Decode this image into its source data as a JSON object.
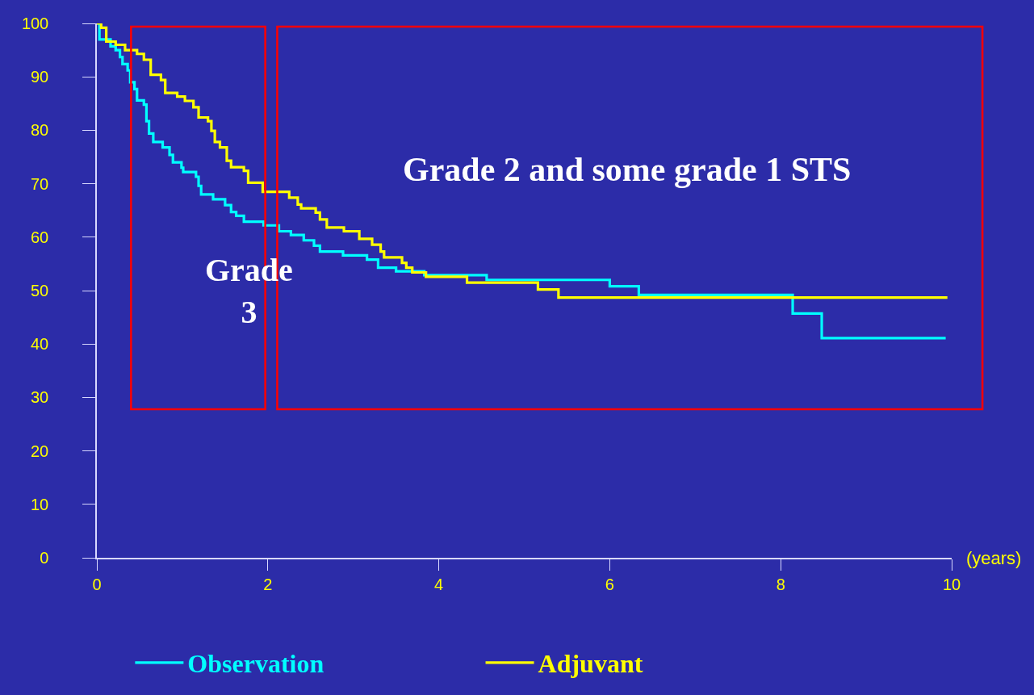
{
  "chart_data": {
    "type": "step",
    "xlabel": "(years)",
    "xlim": [
      0,
      10
    ],
    "xticks": [
      0,
      2,
      4,
      6,
      8,
      10
    ],
    "ylim": [
      0,
      100
    ],
    "yticks": [
      0,
      10,
      20,
      30,
      40,
      50,
      60,
      70,
      80,
      90,
      100
    ],
    "grid": false,
    "legend": "bottom",
    "line_style": "solid",
    "marker": "none",
    "annotations": [
      "Grade 3",
      "Grade 2 and some grade 1 STS"
    ],
    "series": [
      {
        "name": "Observation",
        "color": "#00ffff",
        "x": [
          0,
          0.03,
          0.16,
          0.22,
          0.27,
          0.3,
          0.36,
          0.39,
          0.44,
          0.47,
          0.55,
          0.58,
          0.61,
          0.66,
          0.77,
          0.85,
          0.89,
          0.99,
          1.01,
          1.16,
          1.19,
          1.22,
          1.36,
          1.5,
          1.57,
          1.63,
          1.72,
          1.95,
          2.13,
          2.27,
          2.42,
          2.54,
          2.61,
          2.88,
          3.16,
          3.29,
          3.5,
          3.83,
          4.56,
          6.0,
          6.34,
          8.14,
          8.48,
          9.93
        ],
        "values": [
          100,
          97,
          95.7,
          95,
          93.7,
          92.4,
          91.2,
          89,
          87.7,
          85.6,
          84.8,
          81.7,
          79.4,
          77.8,
          76.8,
          75.4,
          74,
          73,
          72.2,
          71.3,
          69.6,
          68,
          67.1,
          66,
          64.7,
          64,
          62.9,
          62.2,
          61.1,
          60.4,
          59.4,
          58.4,
          57.3,
          56.6,
          55.8,
          54.3,
          53.6,
          52.9,
          52,
          50.8,
          49.2,
          45.7,
          41.1,
          41.1
        ]
      },
      {
        "name": "Adjuvant",
        "color": "#ffff00",
        "x": [
          0,
          0.05,
          0.11,
          0.22,
          0.33,
          0.47,
          0.55,
          0.63,
          0.75,
          0.8,
          0.94,
          1.03,
          1.13,
          1.19,
          1.3,
          1.34,
          1.38,
          1.44,
          1.52,
          1.57,
          1.72,
          1.77,
          1.94,
          2.25,
          2.35,
          2.39,
          2.56,
          2.61,
          2.69,
          2.89,
          3.07,
          3.22,
          3.32,
          3.36,
          3.57,
          3.62,
          3.69,
          3.85,
          4.33,
          5.16,
          5.4,
          9.95
        ],
        "values": [
          100,
          99.2,
          96.6,
          96,
          95,
          94.3,
          93.2,
          90.4,
          89.4,
          87,
          86.3,
          85.5,
          84.3,
          82.4,
          81.7,
          79.9,
          77.8,
          76.8,
          74.3,
          73.1,
          72.4,
          70.2,
          68.5,
          67.4,
          66.1,
          65.4,
          64.6,
          63.3,
          61.8,
          61.1,
          59.7,
          58.6,
          57.3,
          56.2,
          55.2,
          54.3,
          53.4,
          52.6,
          51.5,
          50.2,
          48.7,
          48.7
        ]
      }
    ]
  }
}
